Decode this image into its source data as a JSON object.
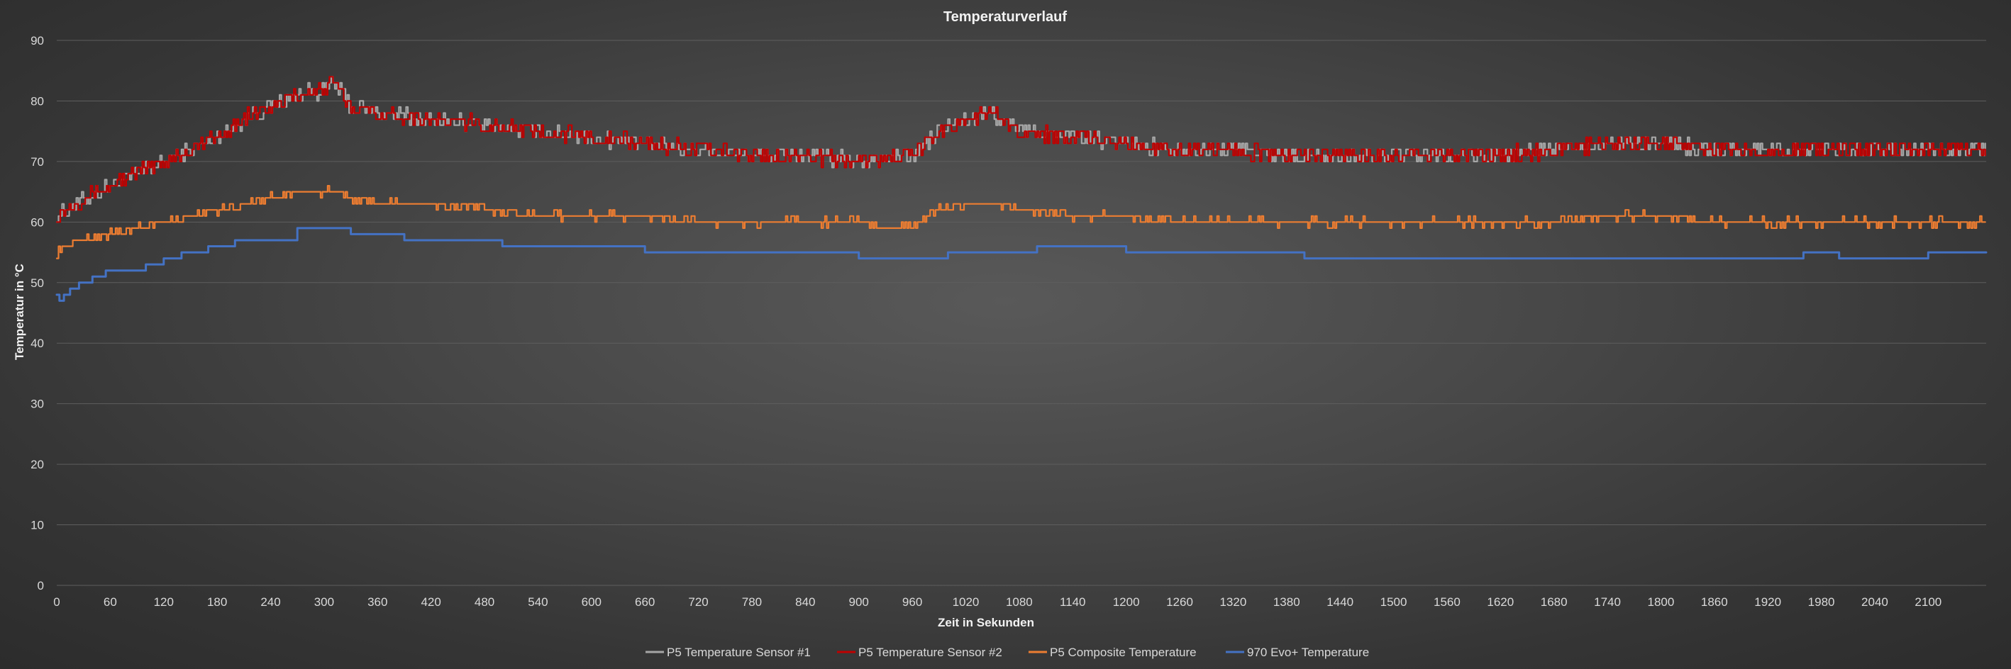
{
  "chart_data": {
    "type": "line",
    "title": "Temperaturverlauf",
    "xlabel": "Zeit in Sekunden",
    "ylabel": "Temperatur in °C",
    "xlim": [
      0,
      2165
    ],
    "ylim": [
      0,
      90
    ],
    "x_ticks": [
      0,
      60,
      120,
      180,
      240,
      300,
      360,
      420,
      480,
      540,
      600,
      660,
      720,
      780,
      840,
      900,
      960,
      1020,
      1080,
      1140,
      1200,
      1260,
      1320,
      1380,
      1440,
      1500,
      1560,
      1620,
      1680,
      1740,
      1800,
      1860,
      1920,
      1980,
      2040,
      2100
    ],
    "y_ticks": [
      0,
      10,
      20,
      30,
      40,
      50,
      60,
      70,
      80,
      90
    ],
    "grid": true,
    "legend_position": "bottom",
    "series": [
      {
        "name": "P5 Temperature Sensor #1",
        "color": "#a6a6a6",
        "x": [
          0,
          10,
          20,
          30,
          60,
          90,
          120,
          150,
          180,
          210,
          240,
          270,
          300,
          310,
          330,
          360,
          420,
          480,
          540,
          600,
          660,
          720,
          780,
          840,
          900,
          960,
          990,
          1020,
          1050,
          1080,
          1140,
          1200,
          1260,
          1320,
          1380,
          1440,
          1500,
          1560,
          1620,
          1680,
          1740,
          1800,
          1860,
          1920,
          1980,
          2040,
          2100,
          2160
        ],
        "values": [
          61,
          62,
          63,
          64,
          66,
          68,
          70,
          72,
          74,
          77,
          79,
          81,
          82,
          83,
          79,
          78,
          77,
          76,
          75,
          74,
          73,
          72,
          71,
          71,
          70,
          71,
          75,
          77,
          78,
          75,
          74,
          73,
          72,
          72,
          71,
          71,
          71,
          71,
          71,
          72,
          73,
          73,
          72,
          72,
          72,
          72,
          72,
          72
        ],
        "noise": 2.5,
        "hidden_behind": "P5 Temperature Sensor #2"
      },
      {
        "name": "P5 Temperature Sensor #2",
        "color": "#c00000",
        "x": [
          0,
          10,
          20,
          30,
          60,
          90,
          120,
          150,
          180,
          210,
          240,
          270,
          300,
          310,
          330,
          360,
          420,
          480,
          540,
          600,
          660,
          720,
          780,
          840,
          900,
          960,
          990,
          1020,
          1050,
          1080,
          1140,
          1200,
          1260,
          1320,
          1380,
          1440,
          1500,
          1560,
          1620,
          1680,
          1740,
          1800,
          1860,
          1920,
          1980,
          2040,
          2100,
          2160
        ],
        "values": [
          61,
          62,
          63,
          64,
          66,
          68,
          70,
          72,
          74,
          77,
          79,
          81,
          82,
          83,
          79,
          78,
          77,
          76,
          75,
          74,
          73,
          72,
          71,
          71,
          70,
          71,
          75,
          77,
          78,
          75,
          74,
          73,
          72,
          72,
          71,
          71,
          71,
          71,
          71,
          72,
          73,
          73,
          72,
          72,
          72,
          72,
          72,
          72
        ],
        "noise": 2.5
      },
      {
        "name": "P5 Composite Temperature",
        "color": "#ed7d31",
        "x": [
          0,
          10,
          30,
          60,
          90,
          120,
          150,
          180,
          210,
          240,
          270,
          300,
          310,
          330,
          360,
          420,
          480,
          540,
          600,
          660,
          720,
          780,
          840,
          900,
          960,
          990,
          1020,
          1050,
          1080,
          1140,
          1200,
          1260,
          1320,
          1380,
          1440,
          1500,
          1560,
          1620,
          1680,
          1740,
          1800,
          1860,
          1920,
          1980,
          2040,
          2100,
          2160
        ],
        "values": [
          55,
          56,
          57,
          58,
          59,
          60,
          61,
          62,
          63,
          64,
          65,
          65,
          65,
          64,
          63,
          63,
          62,
          61,
          61,
          61,
          60,
          60,
          60,
          60,
          59,
          62,
          63,
          63,
          62,
          61,
          61,
          60,
          60,
          60,
          60,
          60,
          60,
          60,
          60,
          61,
          61,
          60,
          60,
          60,
          60,
          60,
          60
        ],
        "noise": 1.2
      },
      {
        "name": "970 Evo+ Temperature",
        "color": "#4472c4",
        "x": [
          0,
          3,
          8,
          15,
          25,
          40,
          55,
          100,
          120,
          140,
          170,
          200,
          270,
          330,
          390,
          500,
          660,
          840,
          900,
          1000,
          1100,
          1200,
          1320,
          1350,
          1400,
          1500,
          1600,
          1660,
          1700,
          1800,
          1860,
          1960,
          2000,
          2070,
          2100,
          2165
        ],
        "values": [
          48,
          47,
          48,
          49,
          50,
          51,
          52,
          53,
          54,
          55,
          56,
          57,
          59,
          58,
          57,
          56,
          55,
          55,
          54,
          55,
          56,
          55,
          55,
          55,
          54,
          54,
          54,
          54,
          54,
          54,
          54,
          55,
          54,
          54,
          55,
          55
        ]
      }
    ]
  }
}
